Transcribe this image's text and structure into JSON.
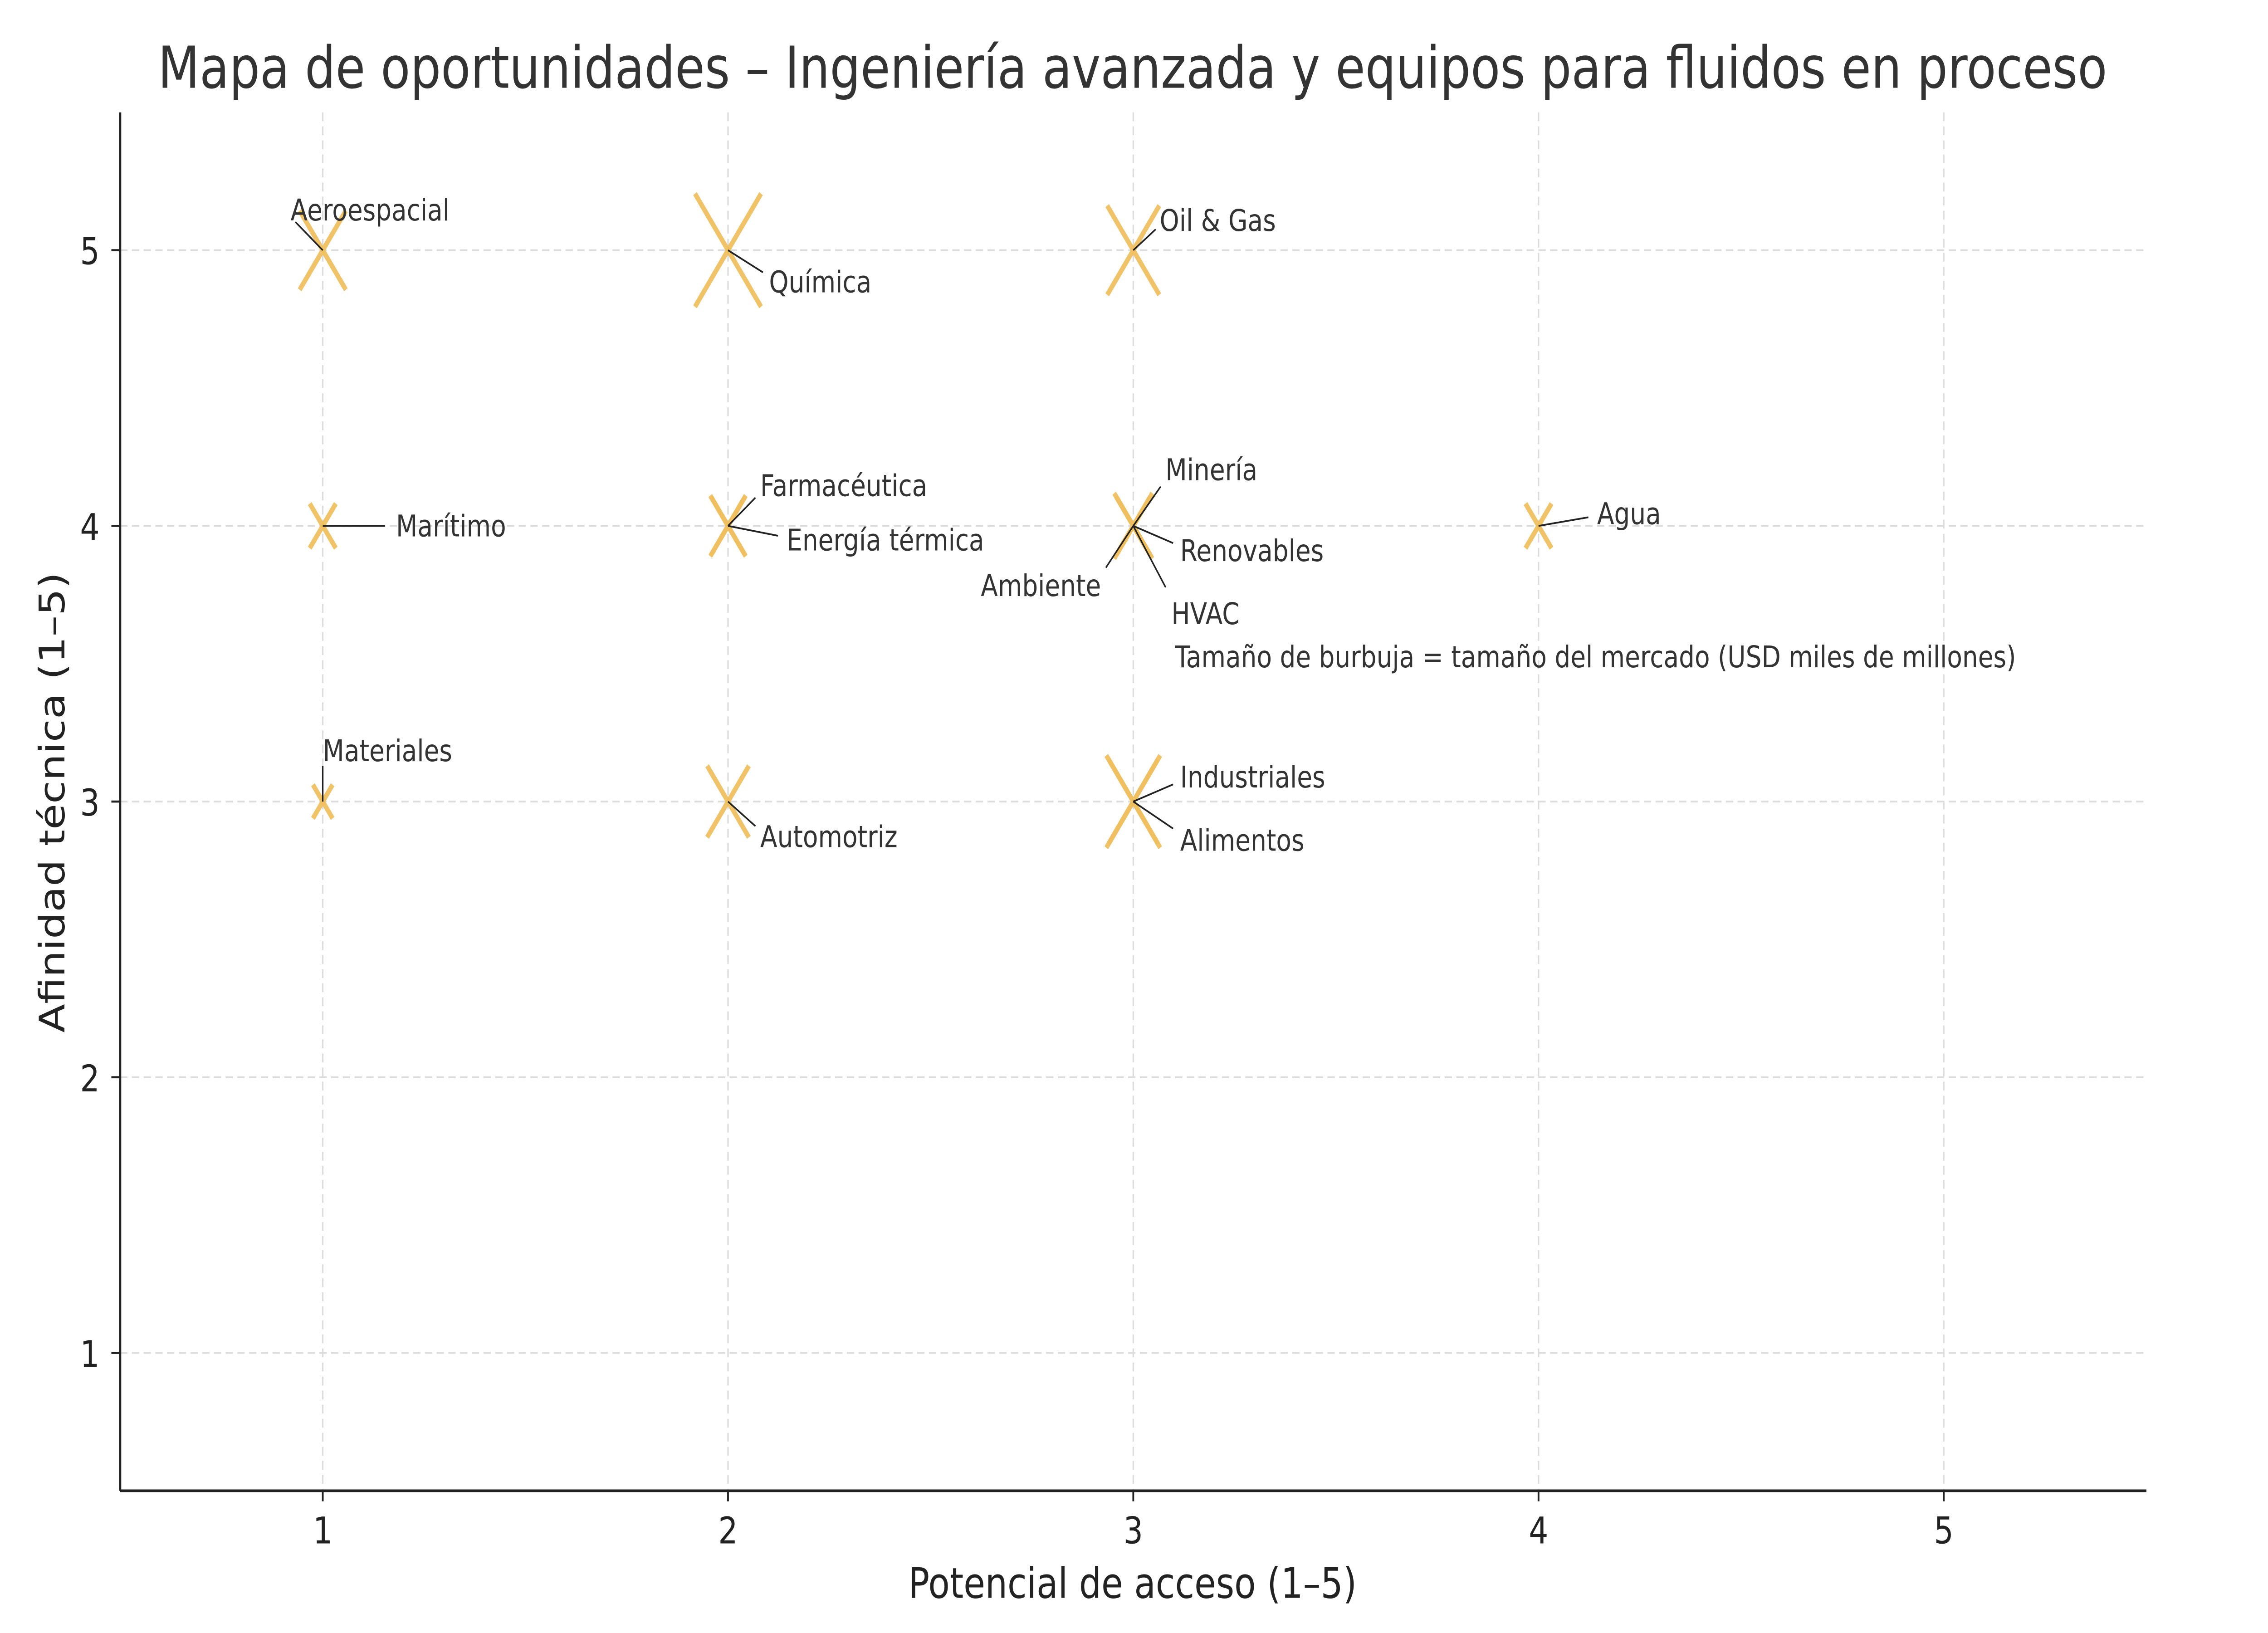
{
  "chart_data": {
    "type": "scatter",
    "title": "Mapa de oportunidades – Ingeniería avanzada y equipos para fluidos en proceso",
    "xlabel": "Potencial de acceso (1–5)",
    "ylabel": "Afinidad técnica (1–5)",
    "xlim": [
      0.5,
      5.5
    ],
    "ylim": [
      0.5,
      5.5
    ],
    "xticks": [
      1,
      2,
      3,
      4,
      5
    ],
    "yticks": [
      1,
      2,
      3,
      4,
      5
    ],
    "grid": true,
    "marker": "x",
    "marker_color": "#f0c060",
    "annotation": "Tamaño de burbuja = tamaño del mercado (USD miles de millones)",
    "points": [
      {
        "label": "Aeroespacial",
        "x": 1,
        "y": 5,
        "size": 22
      },
      {
        "label": "Química",
        "x": 2,
        "y": 5,
        "size": 45
      },
      {
        "label": "Oil & Gas",
        "x": 3,
        "y": 5,
        "size": 28
      },
      {
        "label": "Marítimo",
        "x": 1,
        "y": 4,
        "size": 7
      },
      {
        "label": "Farmacéutica",
        "x": 2,
        "y": 4,
        "size": 13
      },
      {
        "label": "Energía térmica",
        "x": 2,
        "y": 4,
        "size": 12
      },
      {
        "label": "Minería",
        "x": 3,
        "y": 4,
        "size": 12
      },
      {
        "label": "Ambiente",
        "x": 3,
        "y": 4,
        "size": 10
      },
      {
        "label": "Renovables",
        "x": 3,
        "y": 4,
        "size": 15
      },
      {
        "label": "HVAC",
        "x": 3,
        "y": 4,
        "size": 10
      },
      {
        "label": "Agua",
        "x": 4,
        "y": 4,
        "size": 7
      },
      {
        "label": "Materiales",
        "x": 1,
        "y": 3,
        "size": 4
      },
      {
        "label": "Automotriz",
        "x": 2,
        "y": 3,
        "size": 18
      },
      {
        "label": "Industriales",
        "x": 3,
        "y": 3,
        "size": 25
      },
      {
        "label": "Alimentos",
        "x": 3,
        "y": 3,
        "size": 30
      }
    ]
  }
}
